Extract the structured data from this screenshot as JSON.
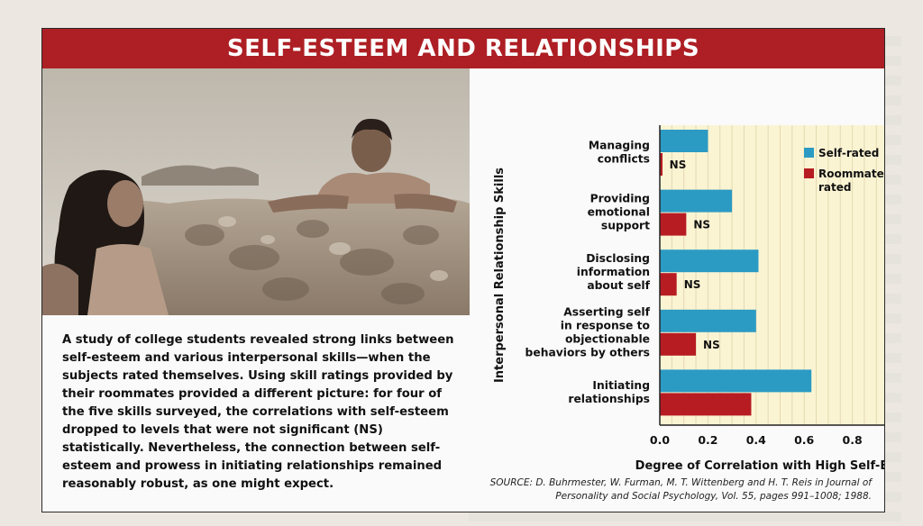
{
  "panel": {
    "title": "SELF-ESTEEM AND RELATIONSHIPS",
    "caption": "A study of college students revealed strong links between self-esteem and various interpersonal skills—when the subjects rated themselves. Using skill ratings provided by their roommates provided a different picture: for four of the five skills surveyed, the correlations with self-esteem dropped to levels that were not significant (NS) statistically. Nevertheless, the connection between self-esteem and prowess in initiating relationships remained reasonably robust, as one might expect.",
    "source": "SOURCE: D. Buhrmester, W. Furman, M. T. Wittenberg and H. T. Reis in Journal of Personality and Social Psychology, Vol. 55, pages 991–1008; 1988."
  },
  "colors": {
    "title_bar": "#ad1f24",
    "self_rated": "#2b9bc3",
    "roommate_rated": "#b71c22",
    "plot_background": "#fbf4d3"
  },
  "chart_data": {
    "type": "bar",
    "orientation": "horizontal",
    "xlabel": "Degree of Correlation with High Self-Esteem",
    "ylabel": "Interpersonal Relationship Skills",
    "xlim": [
      0,
      1.0
    ],
    "xticks": [
      "0.0",
      "0.2",
      "0.4",
      "0.6",
      "0.8",
      "1.0"
    ],
    "grid": true,
    "legend_position": "top-right",
    "categories": [
      [
        "Managing",
        "conflicts"
      ],
      [
        "Providing",
        "emotional",
        "support"
      ],
      [
        "Disclosing",
        "information",
        "about self"
      ],
      [
        "Asserting self",
        "in response to",
        "objectionable",
        "behaviors by others"
      ],
      [
        "Initiating",
        "relationships"
      ]
    ],
    "series": [
      {
        "name": "Self-rated",
        "values": [
          0.2,
          0.3,
          0.41,
          0.4,
          0.63
        ]
      },
      {
        "name": "Roommate-rated",
        "values": [
          0.01,
          0.11,
          0.07,
          0.15,
          0.38
        ]
      }
    ],
    "annotations": [
      "NS",
      "NS",
      "NS",
      "NS",
      ""
    ]
  }
}
